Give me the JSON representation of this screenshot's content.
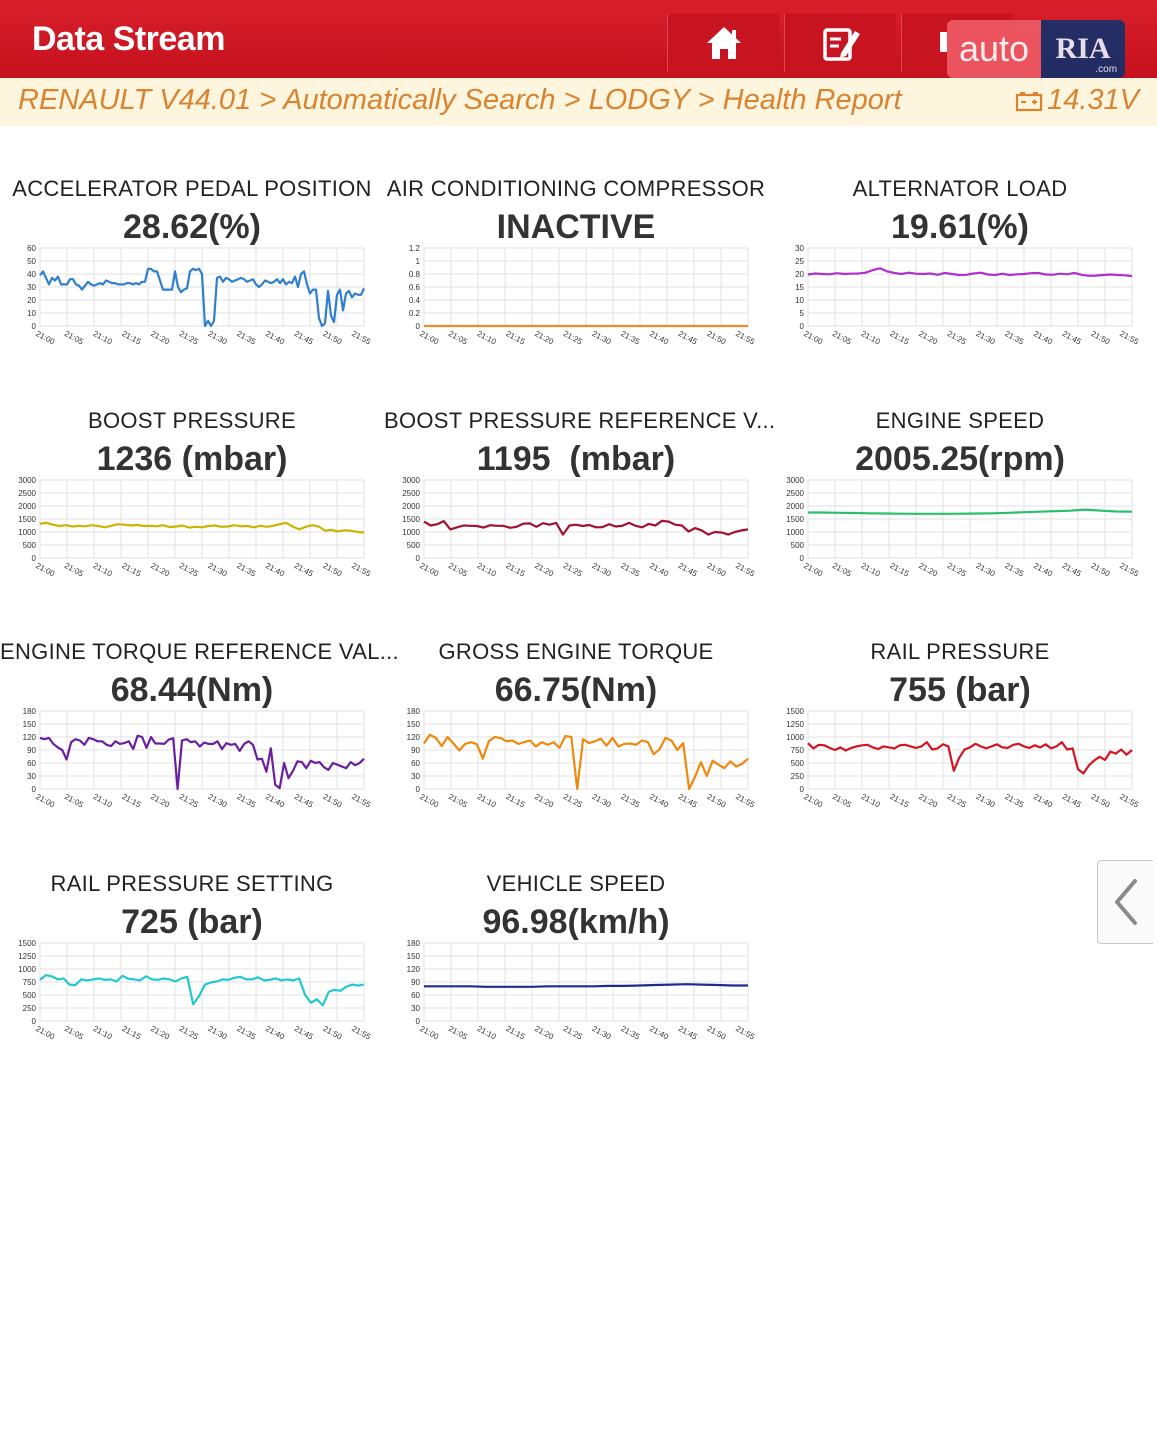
{
  "header": {
    "title": "Data Stream",
    "buttons": [
      {
        "name": "home",
        "icon": "home-icon"
      },
      {
        "name": "edit",
        "icon": "edit-icon"
      },
      {
        "name": "record",
        "icon": "record-icon"
      }
    ],
    "watermark": {
      "left": "auto",
      "right": "RIA",
      "suffix": ".com"
    }
  },
  "breadcrumb": {
    "text": "RENAULT V44.01 > Automatically Search > LODGY > Health Report",
    "voltage": "14.31V",
    "voltage_icon": "battery-icon"
  },
  "time_labels": [
    "21:00",
    "21:05",
    "21:10",
    "21:15",
    "21:20",
    "21:25",
    "21:30",
    "21:35",
    "21:40",
    "21:45",
    "21:50",
    "21:55"
  ],
  "sidebar_toggle": {
    "icon": "chevron-left-icon"
  },
  "parameters": [
    {
      "name": "ACCELERATOR PEDAL POSITION",
      "value": "28.62(%)",
      "chart_data": {
        "type": "line",
        "color": "#2f7fcf",
        "ylim": [
          0,
          60
        ],
        "ytick_labels": [
          "0",
          "10",
          "20",
          "30",
          "40",
          "50",
          "60"
        ],
        "values": [
          39,
          42,
          37,
          32,
          37,
          35,
          38,
          32,
          32,
          32,
          36,
          36,
          32,
          31,
          28,
          31,
          34,
          32,
          31,
          32,
          33,
          32,
          35,
          34,
          33,
          33,
          32,
          32,
          32,
          33,
          33,
          32,
          33,
          32,
          34,
          34,
          44,
          44,
          42,
          42,
          35,
          28,
          28,
          28,
          28,
          42,
          30,
          26,
          28,
          29,
          42,
          44,
          43,
          44,
          40,
          0,
          4,
          0,
          4,
          37,
          38,
          34,
          37,
          36,
          34,
          35,
          36,
          37,
          36,
          34,
          35,
          36,
          32,
          30,
          32,
          35,
          34,
          33,
          34,
          36,
          33,
          36,
          32,
          34,
          33,
          38,
          30,
          40,
          42,
          32,
          25,
          28,
          28,
          6,
          0,
          2,
          27,
          8,
          3,
          24,
          28,
          12,
          25,
          27,
          22,
          25,
          24,
          24,
          29
        ]
      }
    },
    {
      "name": "AIR CONDITIONING COMPRESSOR",
      "value": "INACTIVE",
      "chart_data": {
        "type": "line",
        "color": "#f08a2c",
        "ylim": [
          0,
          1.2
        ],
        "ytick_labels": [
          "0",
          "0.2",
          "0.4",
          "0.6",
          "0.8",
          "1",
          "1.2"
        ],
        "values": [
          0,
          0,
          0,
          0,
          0,
          0,
          0,
          0,
          0,
          0,
          0,
          0,
          0,
          0,
          0,
          0,
          0,
          0,
          0,
          0
        ]
      }
    },
    {
      "name": "ALTERNATOR LOAD",
      "value": "19.61(%)",
      "chart_data": {
        "type": "line",
        "color": "#b12fd1",
        "ylim": [
          0,
          30
        ],
        "ytick_labels": [
          "0",
          "5",
          "10",
          "15",
          "20",
          "25",
          "30"
        ],
        "values": [
          19.8,
          20.2,
          20.0,
          19.9,
          20.3,
          20.0,
          20.1,
          20.2,
          20.5,
          21.5,
          22.2,
          21.0,
          20.4,
          20.0,
          20.5,
          20.1,
          20.0,
          20.2,
          19.7,
          20.4,
          20.0,
          19.6,
          19.7,
          20.2,
          20.5,
          19.8,
          19.6,
          20.1,
          19.6,
          19.9,
          20.0,
          20.3,
          20.4,
          19.8,
          19.7,
          20.1,
          19.9,
          20.4,
          19.7,
          19.3,
          19.4,
          19.6,
          19.8,
          19.6,
          19.5,
          19.2
        ]
      }
    },
    {
      "name": "BOOST PRESSURE",
      "value": "1236 (mbar)",
      "chart_data": {
        "type": "line",
        "color": "#ccb400",
        "ylim": [
          0,
          3000
        ],
        "ytick_labels": [
          "0",
          "500",
          "1000",
          "1500",
          "2000",
          "2500",
          "3000"
        ],
        "values": [
          1320,
          1350,
          1280,
          1230,
          1260,
          1210,
          1240,
          1220,
          1260,
          1230,
          1180,
          1240,
          1300,
          1280,
          1250,
          1270,
          1230,
          1240,
          1220,
          1260,
          1190,
          1210,
          1250,
          1170,
          1200,
          1180,
          1230,
          1250,
          1200,
          1210,
          1260,
          1220,
          1230,
          1180,
          1240,
          1200,
          1240,
          1300,
          1350,
          1210,
          1100,
          1200,
          1260,
          1210,
          1050,
          1080,
          1020,
          1070,
          1050,
          1000,
          980
        ]
      }
    },
    {
      "name": "BOOST PRESSURE REFERENCE V...",
      "value": "1195  (mbar)",
      "chart_data": {
        "type": "line",
        "color": "#a0122f",
        "ylim": [
          0,
          3000
        ],
        "ytick_labels": [
          "0",
          "500",
          "1000",
          "1500",
          "2000",
          "2500",
          "3000"
        ],
        "values": [
          1400,
          1250,
          1300,
          1420,
          1100,
          1180,
          1250,
          1240,
          1230,
          1170,
          1260,
          1240,
          1240,
          1160,
          1200,
          1320,
          1330,
          1200,
          1340,
          1280,
          1350,
          900,
          1250,
          1280,
          1230,
          1270,
          1180,
          1190,
          1300,
          1210,
          1240,
          1350,
          1240,
          1180,
          1310,
          1250,
          1430,
          1400,
          1280,
          1250,
          1020,
          1150,
          1060,
          900,
          1000,
          980,
          900,
          1000,
          1060,
          1100
        ]
      }
    },
    {
      "name": "ENGINE SPEED",
      "value": "2005.25(rpm)",
      "chart_data": {
        "type": "line",
        "color": "#26c06a",
        "ylim": [
          0,
          3000
        ],
        "ytick_labels": [
          "0",
          "500",
          "1000",
          "1500",
          "2000",
          "2500",
          "3000"
        ],
        "values": [
          1750,
          1750,
          1740,
          1730,
          1720,
          1710,
          1705,
          1700,
          1700,
          1700,
          1705,
          1710,
          1720,
          1740,
          1760,
          1780,
          1800,
          1820,
          1860,
          1820,
          1790,
          1780
        ]
      }
    },
    {
      "name": "ENGINE TORQUE REFERENCE VAL...",
      "value": "68.44(Nm)",
      "chart_data": {
        "type": "line",
        "color": "#6a1fa0",
        "ylim": [
          0,
          180
        ],
        "ytick_labels": [
          "0",
          "30",
          "60",
          "90",
          "120",
          "150",
          "180"
        ],
        "values": [
          118,
          115,
          118,
          104,
          96,
          90,
          68,
          108,
          115,
          112,
          102,
          118,
          115,
          110,
          110,
          102,
          99,
          110,
          104,
          106,
          110,
          92,
          123,
          120,
          95,
          120,
          105,
          105,
          104,
          114,
          117,
          0,
          112,
          115,
          108,
          110,
          98,
          107,
          104,
          104,
          110,
          92,
          106,
          102,
          104,
          88,
          104,
          110,
          102,
          68,
          70,
          40,
          94,
          10,
          2,
          60,
          25,
          42,
          64,
          62,
          48,
          65,
          60,
          62,
          50,
          44,
          60,
          56,
          52,
          48,
          62,
          55,
          60,
          70
        ]
      }
    },
    {
      "name": "GROSS ENGINE TORQUE",
      "value": "66.75(Nm)",
      "chart_data": {
        "type": "line",
        "color": "#f0880e",
        "ylim": [
          0,
          180
        ],
        "ytick_labels": [
          "0",
          "30",
          "60",
          "90",
          "120",
          "150",
          "180"
        ],
        "values": [
          105,
          125,
          118,
          99,
          120,
          105,
          89,
          104,
          108,
          103,
          70,
          110,
          120,
          118,
          110,
          112,
          104,
          108,
          112,
          98,
          108,
          102,
          108,
          95,
          122,
          120,
          0,
          115,
          106,
          110,
          116,
          100,
          118,
          98,
          104,
          105,
          102,
          112,
          108,
          80,
          92,
          118,
          112,
          90,
          106,
          0,
          28,
          62,
          30,
          65,
          56,
          48,
          64,
          52,
          58,
          70
        ]
      }
    },
    {
      "name": "RAIL PRESSURE",
      "value": "755 (bar)",
      "chart_data": {
        "type": "line",
        "color": "#d41420",
        "ylim": [
          0,
          1500
        ],
        "ytick_labels": [
          "0",
          "250",
          "500",
          "750",
          "1000",
          "1250",
          "1500"
        ],
        "values": [
          880,
          780,
          850,
          840,
          790,
          750,
          800,
          740,
          790,
          820,
          840,
          850,
          800,
          770,
          820,
          800,
          780,
          840,
          850,
          820,
          790,
          820,
          900,
          760,
          780,
          860,
          820,
          350,
          600,
          760,
          800,
          870,
          820,
          780,
          820,
          860,
          800,
          790,
          850,
          870,
          820,
          790,
          840,
          800,
          860,
          780,
          820,
          900,
          760,
          780,
          380,
          300,
          450,
          550,
          620,
          560,
          720,
          680,
          760,
          660,
          750
        ]
      }
    },
    {
      "name": "RAIL PRESSURE SETTING",
      "value": "725 (bar)",
      "chart_data": {
        "type": "line",
        "color": "#22c8cf",
        "ylim": [
          0,
          1500
        ],
        "ytick_labels": [
          "0",
          "250",
          "500",
          "750",
          "1000",
          "1250",
          "1500"
        ],
        "values": [
          790,
          880,
          860,
          800,
          820,
          700,
          690,
          800,
          780,
          800,
          820,
          790,
          800,
          760,
          870,
          810,
          800,
          780,
          860,
          800,
          790,
          820,
          800,
          760,
          820,
          850,
          320,
          480,
          700,
          740,
          760,
          800,
          790,
          830,
          850,
          800,
          800,
          840,
          780,
          790,
          820,
          780,
          800,
          780,
          820,
          500,
          350,
          420,
          300,
          560,
          600,
          580,
          660,
          700,
          680,
          700
        ]
      }
    },
    {
      "name": "VEHICLE SPEED",
      "value": "96.98(km/h)",
      "chart_data": {
        "type": "line",
        "color": "#1f2a90",
        "ylim": [
          0,
          180
        ],
        "ytick_labels": [
          "0",
          "30",
          "60",
          "90",
          "120",
          "150",
          "180"
        ],
        "values": [
          80,
          80,
          80,
          80,
          79,
          79,
          79,
          79,
          80,
          80,
          80,
          80,
          81,
          81,
          82,
          83,
          84,
          85,
          84,
          83,
          82,
          82
        ]
      }
    }
  ]
}
